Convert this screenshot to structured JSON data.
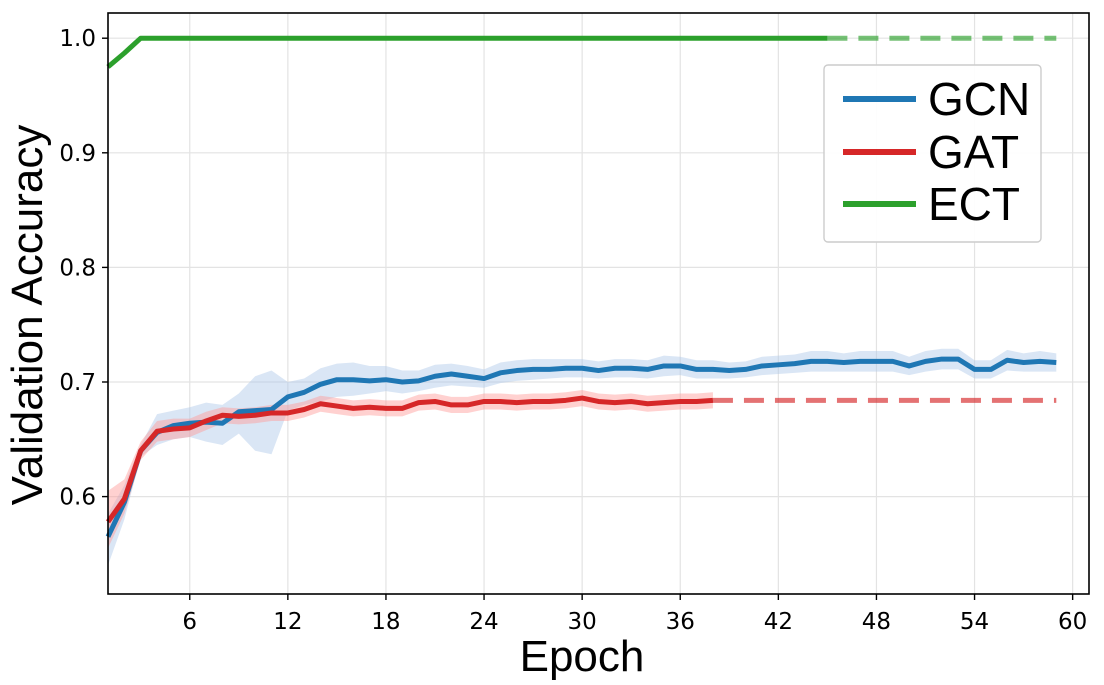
{
  "chart_data": {
    "type": "line",
    "xlabel": "Epoch",
    "ylabel": "Validation Accuracy",
    "xlim": [
      1,
      61
    ],
    "ylim": [
      0.515,
      1.022
    ],
    "xticks": [
      6,
      12,
      18,
      24,
      30,
      36,
      42,
      48,
      54,
      60
    ],
    "yticks": [
      0.6,
      0.7,
      0.8,
      0.9,
      1.0
    ],
    "xtick_labels": [
      "6",
      "12",
      "18",
      "24",
      "30",
      "36",
      "42",
      "48",
      "54",
      "60"
    ],
    "ytick_labels": [
      "0.6",
      "0.7",
      "0.8",
      "0.9",
      "1.0"
    ],
    "grid": true,
    "legend_position": "top-right",
    "series": [
      {
        "name": "GCN",
        "color": "#1f77b4",
        "band_color": "#aec7e8",
        "x": [
          1,
          2,
          3,
          4,
          5,
          6,
          7,
          8,
          9,
          10,
          11,
          12,
          13,
          14,
          15,
          16,
          17,
          18,
          19,
          20,
          21,
          22,
          23,
          24,
          25,
          26,
          27,
          28,
          29,
          30,
          31,
          32,
          33,
          34,
          35,
          36,
          37,
          38,
          39,
          40,
          41,
          42,
          43,
          44,
          45,
          46,
          47,
          48,
          49,
          50,
          51,
          52,
          53,
          54,
          55,
          56,
          57,
          58,
          59
        ],
        "values": [
          0.565,
          0.595,
          0.64,
          0.656,
          0.662,
          0.664,
          0.665,
          0.664,
          0.674,
          0.675,
          0.676,
          0.687,
          0.691,
          0.698,
          0.702,
          0.702,
          0.701,
          0.702,
          0.7,
          0.701,
          0.705,
          0.707,
          0.705,
          0.703,
          0.708,
          0.71,
          0.711,
          0.711,
          0.712,
          0.712,
          0.71,
          0.712,
          0.712,
          0.711,
          0.714,
          0.714,
          0.711,
          0.711,
          0.71,
          0.711,
          0.714,
          0.715,
          0.716,
          0.718,
          0.718,
          0.717,
          0.718,
          0.718,
          0.718,
          0.714,
          0.718,
          0.72,
          0.72,
          0.711,
          0.711,
          0.719,
          0.717,
          0.718,
          0.717
        ],
        "band_lower": [
          0.54,
          0.58,
          0.635,
          0.645,
          0.65,
          0.652,
          0.648,
          0.645,
          0.655,
          0.64,
          0.637,
          0.675,
          0.68,
          0.683,
          0.687,
          0.688,
          0.69,
          0.692,
          0.69,
          0.692,
          0.695,
          0.697,
          0.696,
          0.695,
          0.699,
          0.701,
          0.702,
          0.703,
          0.704,
          0.704,
          0.703,
          0.704,
          0.704,
          0.703,
          0.705,
          0.706,
          0.703,
          0.703,
          0.703,
          0.704,
          0.706,
          0.707,
          0.708,
          0.709,
          0.709,
          0.709,
          0.709,
          0.709,
          0.709,
          0.706,
          0.709,
          0.711,
          0.711,
          0.703,
          0.703,
          0.71,
          0.709,
          0.709,
          0.709
        ],
        "band_upper": [
          0.585,
          0.61,
          0.645,
          0.672,
          0.675,
          0.678,
          0.682,
          0.68,
          0.69,
          0.705,
          0.71,
          0.7,
          0.703,
          0.712,
          0.716,
          0.717,
          0.714,
          0.714,
          0.71,
          0.71,
          0.715,
          0.716,
          0.714,
          0.711,
          0.717,
          0.719,
          0.72,
          0.72,
          0.72,
          0.72,
          0.718,
          0.72,
          0.72,
          0.719,
          0.723,
          0.722,
          0.719,
          0.719,
          0.717,
          0.718,
          0.722,
          0.723,
          0.724,
          0.727,
          0.727,
          0.725,
          0.727,
          0.727,
          0.727,
          0.722,
          0.727,
          0.729,
          0.729,
          0.719,
          0.719,
          0.728,
          0.725,
          0.727,
          0.725
        ],
        "dashed_to": null
      },
      {
        "name": "GAT",
        "color": "#d62728",
        "band_color": "#ff9896",
        "x": [
          1,
          2,
          3,
          4,
          5,
          6,
          7,
          8,
          9,
          10,
          11,
          12,
          13,
          14,
          15,
          16,
          17,
          18,
          19,
          20,
          21,
          22,
          23,
          24,
          25,
          26,
          27,
          28,
          29,
          30,
          31,
          32,
          33,
          34,
          35,
          36,
          37,
          38
        ],
        "values": [
          0.578,
          0.598,
          0.64,
          0.657,
          0.659,
          0.66,
          0.666,
          0.671,
          0.67,
          0.671,
          0.673,
          0.673,
          0.676,
          0.681,
          0.679,
          0.677,
          0.678,
          0.677,
          0.677,
          0.682,
          0.683,
          0.68,
          0.68,
          0.683,
          0.683,
          0.682,
          0.683,
          0.683,
          0.684,
          0.686,
          0.683,
          0.682,
          0.683,
          0.681,
          0.682,
          0.683,
          0.683,
          0.684
        ],
        "band_lower": [
          0.555,
          0.585,
          0.632,
          0.648,
          0.65,
          0.652,
          0.658,
          0.664,
          0.663,
          0.664,
          0.666,
          0.666,
          0.669,
          0.674,
          0.672,
          0.67,
          0.671,
          0.67,
          0.67,
          0.675,
          0.676,
          0.673,
          0.673,
          0.676,
          0.676,
          0.675,
          0.676,
          0.676,
          0.677,
          0.679,
          0.676,
          0.675,
          0.676,
          0.674,
          0.675,
          0.676,
          0.676,
          0.677
        ],
        "band_upper": [
          0.605,
          0.615,
          0.648,
          0.666,
          0.668,
          0.668,
          0.674,
          0.678,
          0.677,
          0.678,
          0.68,
          0.68,
          0.683,
          0.688,
          0.686,
          0.684,
          0.685,
          0.684,
          0.684,
          0.689,
          0.69,
          0.687,
          0.687,
          0.69,
          0.69,
          0.689,
          0.69,
          0.69,
          0.691,
          0.693,
          0.69,
          0.689,
          0.69,
          0.688,
          0.689,
          0.69,
          0.69,
          0.691
        ],
        "dashed_to": 59
      },
      {
        "name": "ECT",
        "color": "#2ca02c",
        "band_color": "#98df8a",
        "x": [
          1,
          2,
          3,
          4,
          5,
          6,
          7,
          8,
          9,
          10,
          11,
          12,
          13,
          14,
          15,
          16,
          17,
          18,
          19,
          20,
          21,
          22,
          23,
          24,
          25,
          26,
          27,
          28,
          29,
          30,
          31,
          32,
          33,
          34,
          35,
          36,
          37,
          38,
          39,
          40,
          41,
          42,
          43,
          44,
          45
        ],
        "values": [
          0.975,
          0.987,
          1.0,
          1.0,
          1.0,
          1.0,
          1.0,
          1.0,
          1.0,
          1.0,
          1.0,
          1.0,
          1.0,
          1.0,
          1.0,
          1.0,
          1.0,
          1.0,
          1.0,
          1.0,
          1.0,
          1.0,
          1.0,
          1.0,
          1.0,
          1.0,
          1.0,
          1.0,
          1.0,
          1.0,
          1.0,
          1.0,
          1.0,
          1.0,
          1.0,
          1.0,
          1.0,
          1.0,
          1.0,
          1.0,
          1.0,
          1.0,
          1.0,
          1.0,
          1.0
        ],
        "band_lower": null,
        "band_upper": null,
        "dashed_to": 59
      }
    ]
  }
}
